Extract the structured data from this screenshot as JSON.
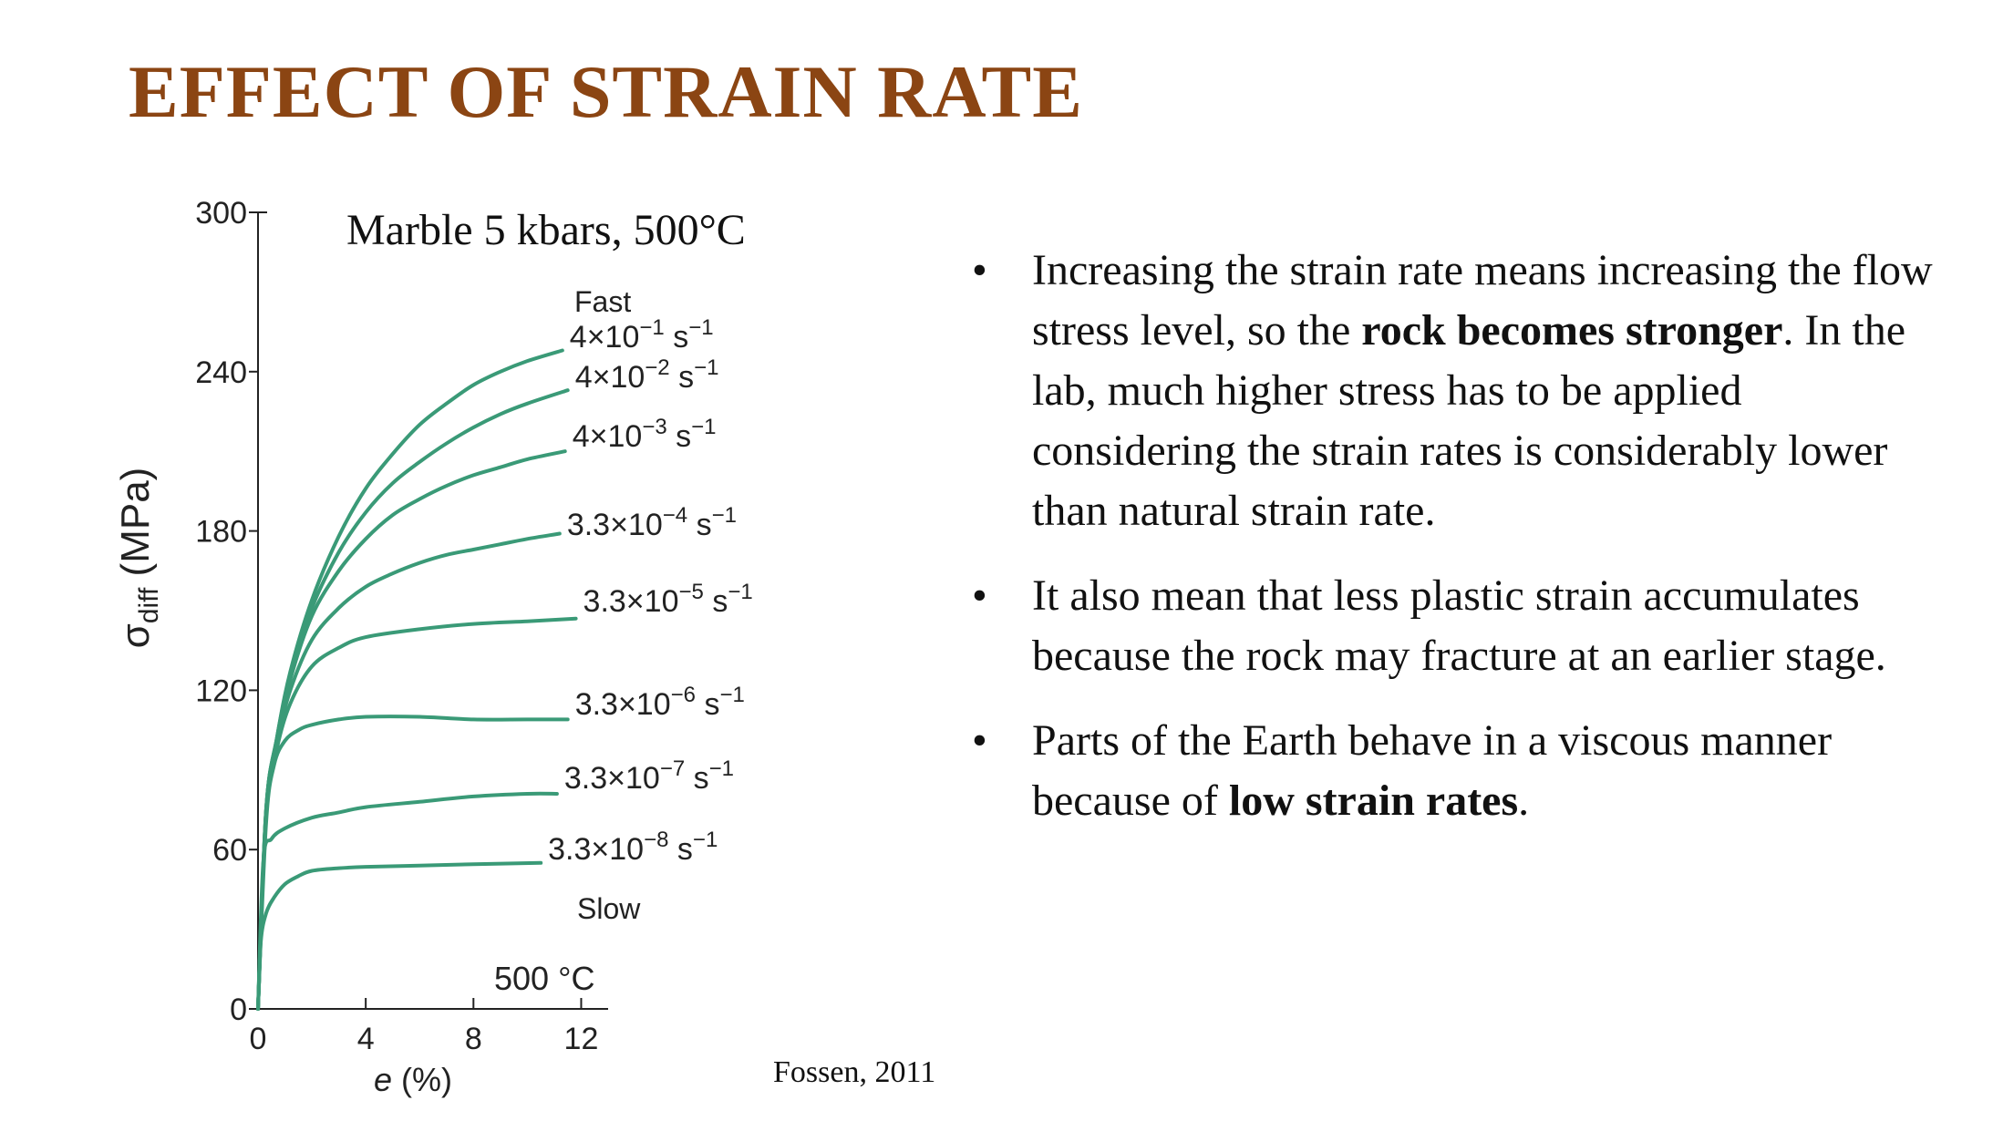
{
  "slide": {
    "title": "EFFECT OF STRAIN RATE",
    "title_color": "#8b4513",
    "citation": "Fossen, 2011",
    "bullets": [
      [
        {
          "text": "Increasing the strain rate means increasing the flow stress level, so the ",
          "bold": false
        },
        {
          "text": "rock becomes stronger",
          "bold": true
        },
        {
          "text": ". In the lab, much higher stress has to be applied considering the strain rates is considerably lower than natural strain rate.",
          "bold": false
        }
      ],
      [
        {
          "text": "It also mean that less plastic strain accumulates because the rock may fracture at an earlier stage.",
          "bold": false
        }
      ],
      [
        {
          "text": "Parts of the Earth behave in a viscous manner because of ",
          "bold": false
        },
        {
          "text": "low strain rates",
          "bold": true
        },
        {
          "text": ".",
          "bold": false
        }
      ]
    ]
  },
  "chart_data": {
    "type": "line",
    "title": "Marble 5 kbars, 500°C",
    "annotation": "500 °C",
    "label_fast": "Fast",
    "label_slow": "Slow",
    "xlabel_var": "e",
    "xlabel_unit": " (%)",
    "ylabel_sym": "σ",
    "ylabel_sub": "diff",
    "ylabel_unit": " (MPa)",
    "xlim": [
      0,
      13
    ],
    "ylim": [
      0,
      300
    ],
    "xticks": [
      0,
      4,
      8,
      12
    ],
    "yticks": [
      0,
      60,
      120,
      180,
      240,
      300
    ],
    "grid": false,
    "line_color": "#3a9a77",
    "series": [
      {
        "name": "4×10⁻¹ s⁻¹",
        "base": "4×10",
        "exp": "−1",
        "unit": " s",
        "unit_exp": "−1",
        "x": [
          0,
          0.3,
          0.7,
          1.2,
          2,
          3,
          4,
          5,
          6,
          7,
          8,
          9,
          10,
          11.3
        ],
        "y": [
          0,
          75,
          102,
          127,
          154,
          178,
          196,
          209,
          220,
          228,
          235,
          240,
          244,
          248
        ]
      },
      {
        "name": "4×10⁻² s⁻¹",
        "base": "4×10",
        "exp": "−2",
        "unit": " s",
        "unit_exp": "−1",
        "x": [
          0,
          0.3,
          0.7,
          1.2,
          2,
          3,
          4,
          5,
          6,
          7,
          8,
          9,
          10,
          11.5
        ],
        "y": [
          0,
          75,
          102,
          126,
          151,
          172,
          187,
          198,
          206,
          213,
          219,
          224,
          228,
          233
        ]
      },
      {
        "name": "4×10⁻³ s⁻¹",
        "base": "4×10",
        "exp": "−3",
        "unit": " s",
        "unit_exp": "−1",
        "x": [
          0,
          0.3,
          0.7,
          1.2,
          2,
          3,
          4,
          5,
          6,
          7,
          8,
          9,
          10,
          11.4
        ],
        "y": [
          0,
          75,
          101,
          124,
          148,
          165,
          177,
          186,
          192,
          197,
          201,
          204,
          207,
          210
        ]
      },
      {
        "name": "3.3×10⁻⁴ s⁻¹",
        "base": "3.3×10",
        "exp": "−4",
        "unit": " s",
        "unit_exp": "−1",
        "x": [
          0,
          0.3,
          0.7,
          1.2,
          2,
          3,
          4,
          5,
          6,
          7,
          8,
          9,
          10,
          11.2
        ],
        "y": [
          0,
          74,
          100,
          120,
          139,
          151,
          159,
          164,
          168,
          171,
          173,
          175,
          177,
          179
        ]
      },
      {
        "name": "3.3×10⁻⁵ s⁻¹",
        "base": "3.3×10",
        "exp": "−5",
        "unit": " s",
        "unit_exp": "−1",
        "x": [
          0,
          0.3,
          0.7,
          1.2,
          2,
          3,
          4,
          6,
          8,
          10,
          11.8
        ],
        "y": [
          0,
          73,
          98,
          115,
          129,
          136,
          140,
          143,
          145,
          146,
          147
        ]
      },
      {
        "name": "3.3×10⁻⁶ s⁻¹",
        "base": "3.3×10",
        "exp": "−6",
        "unit": " s",
        "unit_exp": "−1",
        "x": [
          0,
          0.3,
          0.6,
          1,
          1.5,
          2,
          3,
          4,
          6,
          8,
          10,
          11.5
        ],
        "y": [
          0,
          70,
          92,
          101,
          105,
          107,
          109,
          110,
          110,
          109,
          109,
          109
        ]
      },
      {
        "name": "3.3×10⁻⁷ s⁻¹",
        "base": "3.3×10",
        "exp": "−7",
        "unit": " s",
        "unit_exp": "−1",
        "x": [
          0,
          0.2,
          0.5,
          1,
          2,
          3,
          4,
          6,
          8,
          10,
          11.1
        ],
        "y": [
          0,
          56,
          64,
          68,
          72,
          74,
          76,
          78,
          80,
          81,
          81
        ]
      },
      {
        "name": "3.3×10⁻⁸ s⁻¹",
        "base": "3.3×10",
        "exp": "−8",
        "unit": " s",
        "unit_exp": "−1",
        "x": [
          0,
          0.1,
          0.3,
          0.6,
          1,
          1.5,
          2,
          3,
          4,
          6,
          8,
          10.5
        ],
        "y": [
          0,
          25,
          36,
          42,
          47,
          50,
          52,
          53,
          53.5,
          54,
          54.5,
          55
        ]
      }
    ]
  }
}
